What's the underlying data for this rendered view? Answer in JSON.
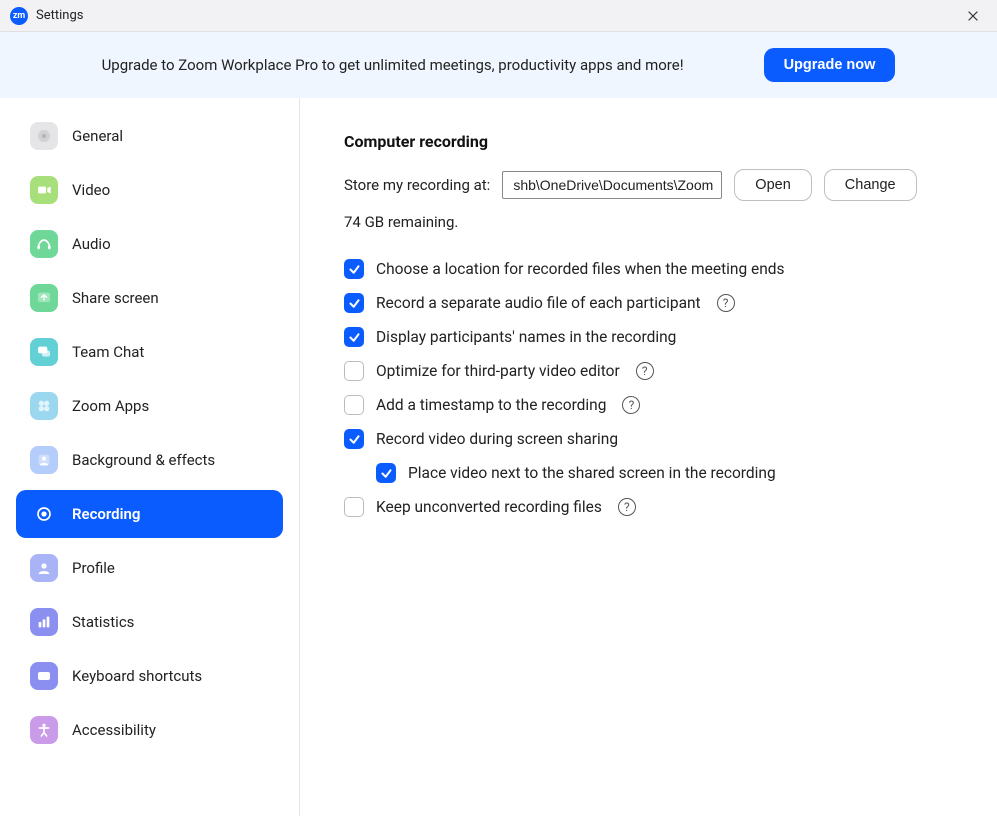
{
  "window": {
    "title": "Settings"
  },
  "banner": {
    "text": "Upgrade to Zoom Workplace Pro to get unlimited meetings, productivity apps and more!",
    "button": "Upgrade now"
  },
  "colors": {
    "accent": "#0b5cff",
    "banner_bg": "#f0f6ff",
    "sidebar_border": "#e6e6e6"
  },
  "sidebar": {
    "items": [
      {
        "id": "general",
        "label": "General",
        "icon_bg": "#e5e5e8",
        "icon_fg": "#b4b4b8",
        "active": false
      },
      {
        "id": "video",
        "label": "Video",
        "icon_bg": "#a7e07b",
        "icon_fg": "#ffffff",
        "active": false
      },
      {
        "id": "audio",
        "label": "Audio",
        "icon_bg": "#6fd898",
        "icon_fg": "#ffffff",
        "active": false
      },
      {
        "id": "share-screen",
        "label": "Share screen",
        "icon_bg": "#6fd898",
        "icon_fg": "#ffffff",
        "active": false
      },
      {
        "id": "team-chat",
        "label": "Team Chat",
        "icon_bg": "#63d0d6",
        "icon_fg": "#ffffff",
        "active": false
      },
      {
        "id": "zoom-apps",
        "label": "Zoom Apps",
        "icon_bg": "#9cd7f0",
        "icon_fg": "#ffffff",
        "active": false
      },
      {
        "id": "background-effects",
        "label": "Background & effects",
        "icon_bg": "#b5cdfb",
        "icon_fg": "#ffffff",
        "active": false
      },
      {
        "id": "recording",
        "label": "Recording",
        "icon_bg": "#ffffff",
        "icon_fg": "#ffffff",
        "active": true
      },
      {
        "id": "profile",
        "label": "Profile",
        "icon_bg": "#a9b4f7",
        "icon_fg": "#ffffff",
        "active": false
      },
      {
        "id": "statistics",
        "label": "Statistics",
        "icon_bg": "#8b90f0",
        "icon_fg": "#ffffff",
        "active": false
      },
      {
        "id": "keyboard-shortcuts",
        "label": "Keyboard shortcuts",
        "icon_bg": "#8b90f0",
        "icon_fg": "#ffffff",
        "active": false
      },
      {
        "id": "accessibility",
        "label": "Accessibility",
        "icon_bg": "#c99be8",
        "icon_fg": "#ffffff",
        "active": false
      }
    ]
  },
  "content": {
    "section_title": "Computer recording",
    "store_label": "Store my recording at:",
    "store_path": "shb\\OneDrive\\Documents\\Zoom",
    "open_btn": "Open",
    "change_btn": "Change",
    "remaining": "74 GB remaining.",
    "options": [
      {
        "id": "choose-location",
        "label": "Choose a location for recorded files when the meeting ends",
        "checked": true,
        "help": false,
        "indent": 0
      },
      {
        "id": "separate-audio",
        "label": "Record a separate audio file of each participant",
        "checked": true,
        "help": true,
        "indent": 0
      },
      {
        "id": "display-names",
        "label": "Display participants' names in the recording",
        "checked": true,
        "help": false,
        "indent": 0
      },
      {
        "id": "optimize-3p",
        "label": "Optimize for third-party video editor",
        "checked": false,
        "help": true,
        "indent": 0
      },
      {
        "id": "add-timestamp",
        "label": "Add a timestamp to the recording",
        "checked": false,
        "help": true,
        "indent": 0
      },
      {
        "id": "record-video-ss",
        "label": "Record video during screen sharing",
        "checked": true,
        "help": false,
        "indent": 0
      },
      {
        "id": "place-video-next",
        "label": "Place video next to the shared screen in the recording",
        "checked": true,
        "help": false,
        "indent": 1
      },
      {
        "id": "keep-unconverted",
        "label": "Keep unconverted recording files",
        "checked": false,
        "help": true,
        "indent": 0
      }
    ]
  }
}
